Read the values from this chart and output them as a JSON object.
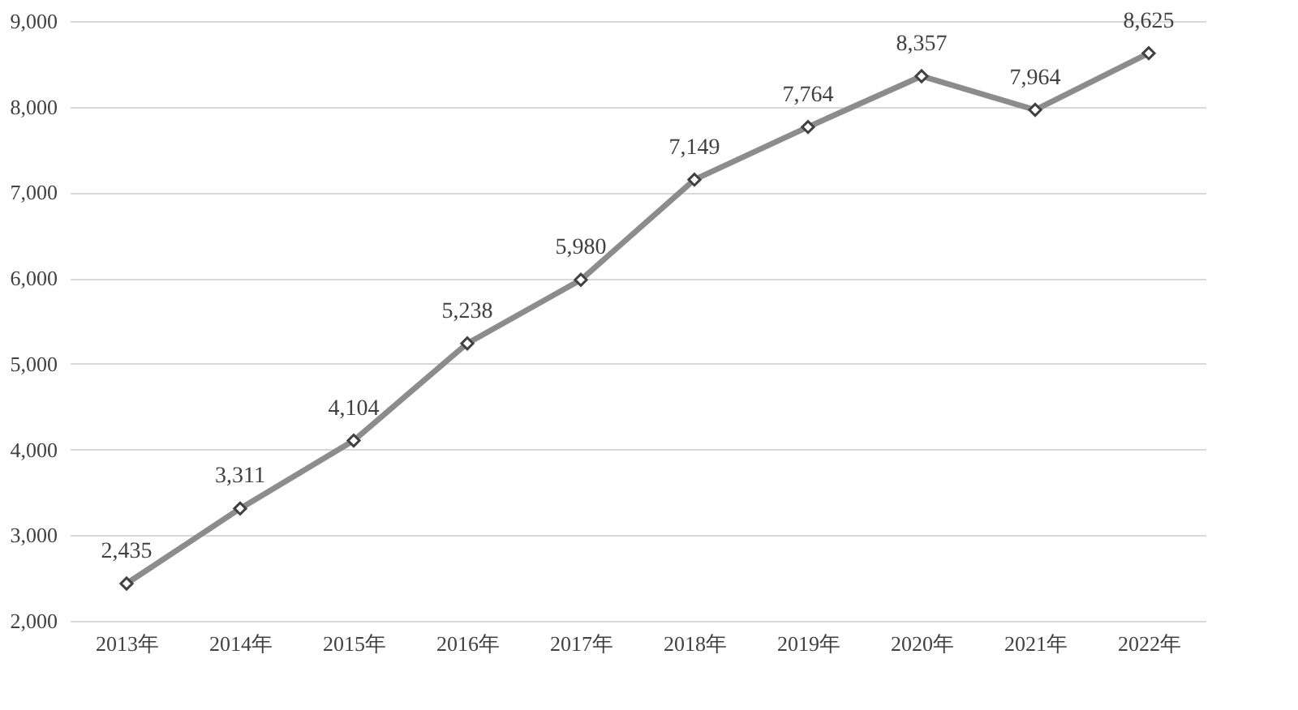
{
  "chart_data": {
    "type": "line",
    "categories": [
      "2013年",
      "2014年",
      "2015年",
      "2016年",
      "2017年",
      "2018年",
      "2019年",
      "2020年",
      "2021年",
      "2022年"
    ],
    "series": [
      {
        "color": "#8c8c8c",
        "values": [
          2435,
          3311,
          4104,
          5238,
          5980,
          7149,
          7764,
          8357,
          7964,
          8625
        ],
        "value_labels": [
          "2,435",
          "3,311",
          "4,104",
          "5,238",
          "5,980",
          "7,149",
          "7,764",
          "8,357",
          "7,964",
          "8,625"
        ]
      }
    ],
    "ylim": [
      2000,
      9000
    ],
    "yticks": [
      {
        "value": 2000,
        "label": "2,000"
      },
      {
        "value": 3000,
        "label": "3,000"
      },
      {
        "value": 4000,
        "label": "4,000"
      },
      {
        "value": 5000,
        "label": "5,000"
      },
      {
        "value": 6000,
        "label": "6,000"
      },
      {
        "value": 7000,
        "label": "7,000"
      },
      {
        "value": 8000,
        "label": "8,000"
      },
      {
        "value": 9000,
        "label": "9,000"
      }
    ],
    "grid": "y",
    "marker": "diamond",
    "line_style": "solid"
  }
}
